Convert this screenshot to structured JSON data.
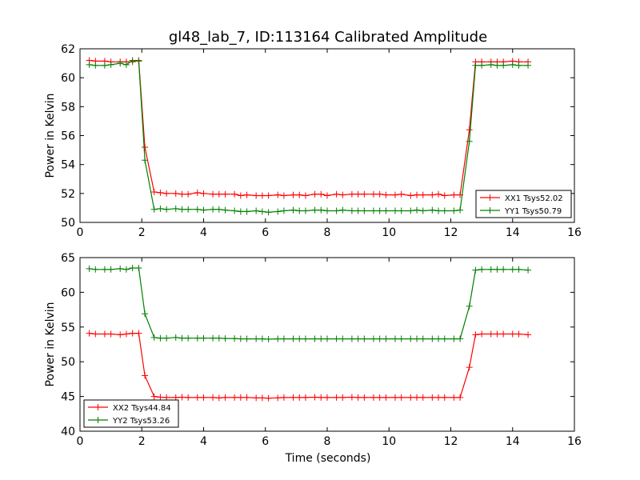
{
  "figure": {
    "title": "gl48_lab_7, ID:113164 Calibrated Amplitude",
    "xlabel": "Time (seconds)"
  },
  "colors": {
    "red": "#ff0000",
    "green": "#008000"
  },
  "chart_data": [
    {
      "type": "line",
      "title": "gl48_lab_7, ID:113164 Calibrated Amplitude",
      "xlabel": "",
      "ylabel": "Power in Kelvin",
      "xlim": [
        0,
        16
      ],
      "ylim": [
        50,
        62
      ],
      "xticks": [
        "0",
        "2",
        "4",
        "6",
        "8",
        "10",
        "12",
        "14",
        "16"
      ],
      "yticks": [
        "50",
        "52",
        "54",
        "56",
        "58",
        "60",
        "62"
      ],
      "grid": false,
      "legend": "lower-right",
      "x": [
        0.3,
        0.5,
        0.8,
        1.0,
        1.3,
        1.5,
        1.7,
        1.9,
        2.1,
        2.4,
        2.6,
        2.8,
        3.1,
        3.3,
        3.5,
        3.8,
        4.0,
        4.3,
        4.5,
        4.7,
        5.0,
        5.2,
        5.4,
        5.7,
        5.9,
        6.1,
        6.4,
        6.6,
        6.9,
        7.1,
        7.3,
        7.6,
        7.8,
        8.0,
        8.3,
        8.5,
        8.8,
        9.0,
        9.2,
        9.5,
        9.7,
        9.9,
        10.2,
        10.4,
        10.7,
        10.9,
        11.1,
        11.4,
        11.6,
        11.8,
        12.1,
        12.3,
        12.6,
        12.8,
        13.0,
        13.3,
        13.5,
        13.7,
        14.0,
        14.2,
        14.5
      ],
      "series": [
        {
          "name": "XX1 Tsys52.02",
          "color": "#ff0000",
          "values": [
            61.2,
            61.15,
            61.15,
            61.1,
            61.1,
            61.1,
            61.1,
            61.2,
            55.2,
            52.1,
            52.05,
            52.0,
            52.0,
            51.95,
            51.95,
            52.05,
            52.0,
            51.95,
            51.95,
            51.95,
            51.95,
            51.85,
            51.9,
            51.85,
            51.85,
            51.85,
            51.9,
            51.85,
            51.9,
            51.9,
            51.85,
            51.95,
            51.95,
            51.85,
            51.95,
            51.9,
            51.95,
            51.95,
            51.95,
            51.95,
            51.95,
            51.9,
            51.9,
            51.95,
            51.85,
            51.9,
            51.9,
            51.9,
            51.95,
            51.85,
            51.9,
            51.9,
            56.4,
            61.1,
            61.1,
            61.1,
            61.1,
            61.1,
            61.15,
            61.1,
            61.1
          ]
        },
        {
          "name": "YY1 Tsys50.79",
          "color": "#008000",
          "values": [
            60.9,
            60.85,
            60.85,
            60.9,
            61.0,
            60.9,
            61.2,
            61.15,
            54.3,
            50.9,
            50.95,
            50.9,
            50.95,
            50.9,
            50.9,
            50.9,
            50.85,
            50.9,
            50.9,
            50.85,
            50.8,
            50.75,
            50.75,
            50.8,
            50.75,
            50.7,
            50.75,
            50.8,
            50.85,
            50.8,
            50.8,
            50.85,
            50.85,
            50.8,
            50.8,
            50.85,
            50.8,
            50.8,
            50.8,
            50.8,
            50.8,
            50.8,
            50.8,
            50.8,
            50.8,
            50.85,
            50.8,
            50.85,
            50.8,
            50.8,
            50.8,
            50.85,
            55.6,
            60.85,
            60.85,
            60.9,
            60.85,
            60.85,
            60.9,
            60.85,
            60.85
          ]
        }
      ]
    },
    {
      "type": "line",
      "title": "",
      "xlabel": "Time (seconds)",
      "ylabel": "Power in Kelvin",
      "xlim": [
        0,
        16
      ],
      "ylim": [
        40,
        65
      ],
      "xticks": [
        "0",
        "2",
        "4",
        "6",
        "8",
        "10",
        "12",
        "14",
        "16"
      ],
      "yticks": [
        "40",
        "45",
        "50",
        "55",
        "60",
        "65"
      ],
      "grid": false,
      "legend": "lower-left",
      "x": [
        0.3,
        0.5,
        0.8,
        1.0,
        1.3,
        1.5,
        1.7,
        1.9,
        2.1,
        2.4,
        2.6,
        2.8,
        3.1,
        3.3,
        3.5,
        3.8,
        4.0,
        4.3,
        4.5,
        4.7,
        5.0,
        5.2,
        5.4,
        5.7,
        5.9,
        6.1,
        6.4,
        6.6,
        6.9,
        7.1,
        7.3,
        7.6,
        7.8,
        8.0,
        8.3,
        8.5,
        8.8,
        9.0,
        9.2,
        9.5,
        9.7,
        9.9,
        10.2,
        10.4,
        10.7,
        10.9,
        11.1,
        11.4,
        11.6,
        11.8,
        12.1,
        12.3,
        12.6,
        12.8,
        13.0,
        13.3,
        13.5,
        13.7,
        14.0,
        14.2,
        14.5
      ],
      "series": [
        {
          "name": "XX2 Tsys44.84",
          "color": "#ff0000",
          "values": [
            54.1,
            54.0,
            54.0,
            54.0,
            53.9,
            54.0,
            54.1,
            54.1,
            48.0,
            45.0,
            44.9,
            44.85,
            44.85,
            44.9,
            44.85,
            44.85,
            44.85,
            44.85,
            44.8,
            44.85,
            44.85,
            44.85,
            44.85,
            44.8,
            44.8,
            44.75,
            44.8,
            44.85,
            44.85,
            44.85,
            44.85,
            44.9,
            44.85,
            44.85,
            44.85,
            44.85,
            44.9,
            44.85,
            44.85,
            44.85,
            44.85,
            44.85,
            44.85,
            44.85,
            44.85,
            44.85,
            44.85,
            44.85,
            44.85,
            44.85,
            44.85,
            44.85,
            49.2,
            53.9,
            54.0,
            54.0,
            54.0,
            54.0,
            54.0,
            54.0,
            53.9
          ]
        },
        {
          "name": "YY2 Tsys53.26",
          "color": "#008000",
          "values": [
            63.4,
            63.3,
            63.3,
            63.3,
            63.4,
            63.3,
            63.5,
            63.5,
            56.9,
            53.5,
            53.4,
            53.4,
            53.5,
            53.4,
            53.4,
            53.4,
            53.4,
            53.4,
            53.4,
            53.35,
            53.35,
            53.3,
            53.3,
            53.3,
            53.3,
            53.25,
            53.3,
            53.3,
            53.3,
            53.3,
            53.3,
            53.3,
            53.3,
            53.3,
            53.3,
            53.3,
            53.3,
            53.3,
            53.3,
            53.3,
            53.3,
            53.3,
            53.3,
            53.3,
            53.3,
            53.3,
            53.3,
            53.3,
            53.3,
            53.3,
            53.3,
            53.3,
            58.0,
            63.2,
            63.3,
            63.3,
            63.3,
            63.3,
            63.3,
            63.3,
            63.2
          ]
        }
      ]
    }
  ]
}
